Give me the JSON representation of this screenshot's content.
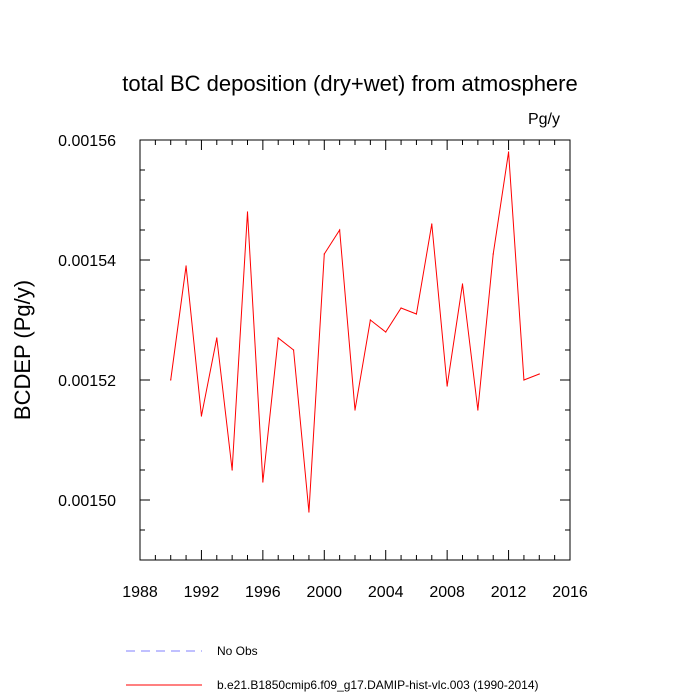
{
  "chart_data": {
    "type": "line",
    "title": "total BC deposition (dry+wet) from atmosphere",
    "units": "Pg/y",
    "xlabel": "",
    "ylabel": "BCDEP  (Pg/y)",
    "xlim": [
      1988,
      2016
    ],
    "ylim": [
      0.00149,
      0.00156
    ],
    "x_ticks": [
      "1988",
      "1992",
      "1996",
      "2000",
      "2004",
      "2008",
      "2012",
      "2016"
    ],
    "y_ticks": [
      "0.00150",
      "0.00152",
      "0.00154",
      "0.00156"
    ],
    "grid": false,
    "legend_position": "bottom",
    "series": [
      {
        "name": "b.e21.B1850cmip6.f09_g17.DAMIP-hist-vlc.003 (1990-2014)",
        "color": "#ff0000",
        "style": "solid",
        "x": [
          1990,
          1991,
          1992,
          1993,
          1994,
          1995,
          1996,
          1997,
          1998,
          1999,
          2000,
          2001,
          2002,
          2003,
          2004,
          2005,
          2006,
          2007,
          2008,
          2009,
          2010,
          2011,
          2012,
          2013,
          2014
        ],
        "y": [
          0.00152,
          0.001539,
          0.001514,
          0.001527,
          0.001505,
          0.001548,
          0.001503,
          0.001527,
          0.001525,
          0.001498,
          0.001541,
          0.001545,
          0.001515,
          0.00153,
          0.001528,
          0.001532,
          0.001531,
          0.001546,
          0.001519,
          0.001536,
          0.001515,
          0.001541,
          0.001558,
          0.00152,
          0.001521
        ]
      }
    ],
    "legend": [
      {
        "label": "No Obs",
        "color": "#8080ff",
        "style": "dashed"
      },
      {
        "label": "b.e21.B1850cmip6.f09_g17.DAMIP-hist-vlc.003 (1990-2014)",
        "color": "#ff0000",
        "style": "solid"
      }
    ]
  }
}
